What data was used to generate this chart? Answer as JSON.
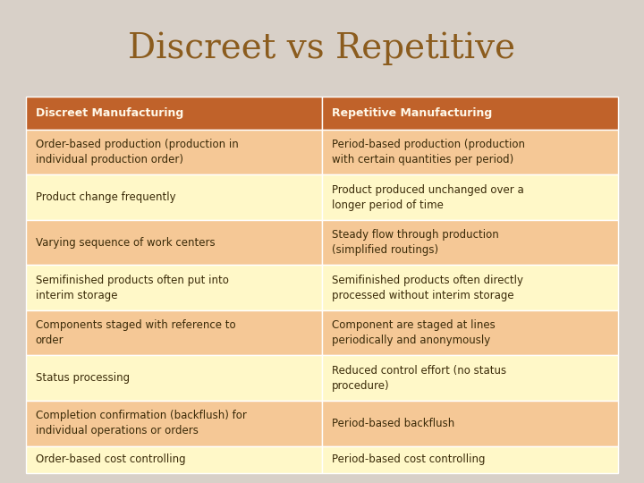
{
  "title": "Discreet vs Repetitive",
  "title_color": "#8B5C1E",
  "title_fontsize": 28,
  "title_fontweight": "normal",
  "background_color": "#D8D0C8",
  "header_bg_color": "#C0622A",
  "header_text_color": "#FFF8E8",
  "odd_row_color": "#F5C896",
  "even_row_color": "#FFF8C8",
  "text_color": "#3A2A08",
  "header_fontsize": 9,
  "cell_fontsize": 8.5,
  "columns": [
    "Discreet Manufacturing",
    "Repetitive Manufacturing"
  ],
  "rows": [
    [
      "Order-based production (production in\nindividual production order)",
      "Period-based production (production\nwith certain quantities per period)"
    ],
    [
      "Product change frequently",
      "Product produced unchanged over a\nlonger period of time"
    ],
    [
      "Varying sequence of work centers",
      "Steady flow through production\n(simplified routings)"
    ],
    [
      "Semifinished products often put into\ninterim storage",
      "Semifinished products often directly\nprocessed without interim storage"
    ],
    [
      "Components staged with reference to\norder",
      "Component are staged at lines\nperiodically and anonymously"
    ],
    [
      "Status processing",
      "Reduced control effort (no status\nprocedure)"
    ],
    [
      "Completion confirmation (backflush) for\nindividual operations or orders",
      "Period-based backflush"
    ],
    [
      "Order-based cost controlling",
      "Period-based cost controlling"
    ]
  ],
  "row_colors": [
    "#F5C896",
    "#FFF8C8",
    "#F5C896",
    "#FFF8C8",
    "#F5C896",
    "#FFF8C8",
    "#F5C896",
    "#FFF8C8"
  ]
}
